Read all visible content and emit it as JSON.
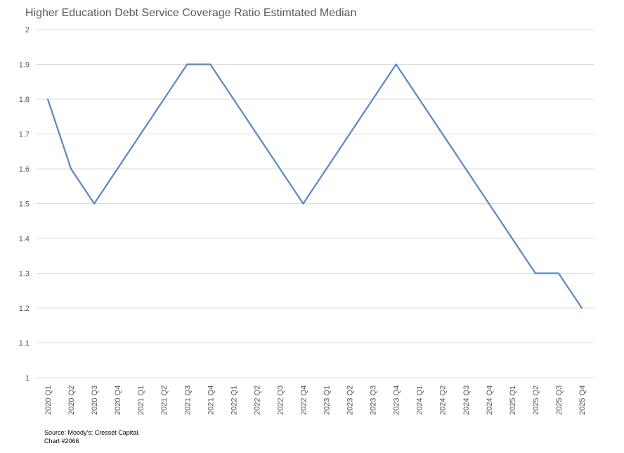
{
  "chart_data": {
    "type": "line",
    "title": "Higher Education Debt Service Coverage Ratio Estimtated Median",
    "xlabel": "",
    "ylabel": "",
    "categories": [
      "2020 Q1",
      "2020 Q2",
      "2020 Q3",
      "2020 Q4",
      "2021 Q1",
      "2021 Q2",
      "2021 Q3",
      "2021 Q4",
      "2022 Q1",
      "2022 Q2",
      "2022 Q3",
      "2022 Q4",
      "2023 Q1",
      "2023 Q2",
      "2023 Q3",
      "2023 Q4",
      "2024 Q1",
      "2024 Q2",
      "2024 Q3",
      "2024 Q4",
      "2025 Q1",
      "2025 Q2",
      "2025 Q3",
      "2025 Q4"
    ],
    "series": [
      {
        "values": [
          1.8,
          1.6,
          1.5,
          1.6,
          1.7,
          1.8,
          1.9,
          1.9,
          1.8,
          1.7,
          1.6,
          1.5,
          1.6,
          1.7,
          1.8,
          1.9,
          1.8,
          1.7,
          1.6,
          1.5,
          1.4,
          1.3,
          1.3,
          1.2
        ],
        "color": "#5B87C5"
      }
    ],
    "ylim": [
      1,
      2
    ],
    "yticks": [
      "1",
      "1.1",
      "1.2",
      "1.3",
      "1.4",
      "1.5",
      "1.6",
      "1.7",
      "1.8",
      "1.9",
      "2"
    ],
    "grid": true,
    "legend": "none"
  },
  "source": {
    "line1": "Source: Moody's; Cresset Capital.",
    "line2": "Chart #2066"
  }
}
